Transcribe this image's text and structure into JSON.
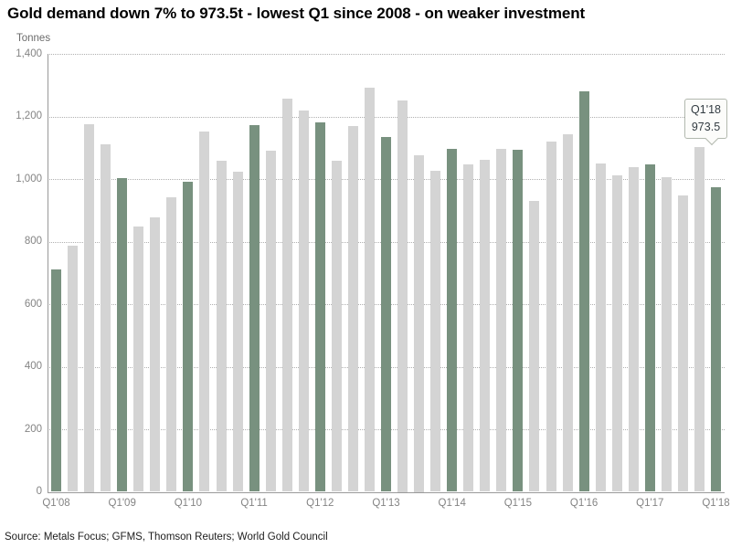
{
  "title": "Gold demand down 7% to 973.5t - lowest Q1 since 2008 - on weaker investment",
  "source": "Source: Metals Focus; GFMS, Thomson Reuters; World Gold Council",
  "callout": {
    "line1": "Q1'18",
    "line2": "973.5"
  },
  "colors": {
    "q1_bar": "#78917f",
    "other_bar": "#d4d4d4",
    "gridline": "#b0b0b0",
    "axis": "#999999",
    "tick_text": "#848484"
  },
  "chart_data": {
    "type": "bar",
    "title": "Gold demand down 7% to 973.5t - lowest Q1 since 2008 - on weaker investment",
    "xlabel": "",
    "ylabel": "Tonnes",
    "ylim": [
      0,
      1400
    ],
    "ytick_step": 200,
    "ytick_labels": [
      "0",
      "200",
      "400",
      "600",
      "800",
      "1,000",
      "1,200",
      "1,400"
    ],
    "grid": "horizontal-dotted",
    "legend": "none",
    "highlight_rule": "Q1 quarters shown in green, other quarters gray",
    "annotation": {
      "target": "Q1'18",
      "text_line1": "Q1'18",
      "text_line2": "973.5"
    },
    "categories": [
      "Q1'08",
      "Q2'08",
      "Q3'08",
      "Q4'08",
      "Q1'09",
      "Q2'09",
      "Q3'09",
      "Q4'09",
      "Q1'10",
      "Q2'10",
      "Q3'10",
      "Q4'10",
      "Q1'11",
      "Q2'11",
      "Q3'11",
      "Q4'11",
      "Q1'12",
      "Q2'12",
      "Q3'12",
      "Q4'12",
      "Q1'13",
      "Q2'13",
      "Q3'13",
      "Q4'13",
      "Q1'14",
      "Q2'14",
      "Q3'14",
      "Q4'14",
      "Q1'15",
      "Q2'15",
      "Q3'15",
      "Q4'15",
      "Q1'16",
      "Q2'16",
      "Q3'16",
      "Q4'16",
      "Q1'17",
      "Q2'17",
      "Q3'17",
      "Q4'17",
      "Q1'18"
    ],
    "values": [
      710,
      787,
      1175,
      1110,
      1003,
      848,
      878,
      941,
      990,
      1153,
      1058,
      1022,
      1172,
      1091,
      1256,
      1219,
      1181,
      1057,
      1169,
      1293,
      1134,
      1250,
      1075,
      1026,
      1095,
      1046,
      1062,
      1097,
      1093,
      929,
      1120,
      1142,
      1281,
      1051,
      1012,
      1037,
      1047,
      1006,
      948,
      1102,
      973.5
    ],
    "xtick_shown": [
      "Q1'08",
      "Q1'09",
      "Q1'10",
      "Q1'11",
      "Q1'12",
      "Q1'13",
      "Q1'14",
      "Q1'15",
      "Q1'16",
      "Q1'17",
      "Q1'18"
    ]
  }
}
